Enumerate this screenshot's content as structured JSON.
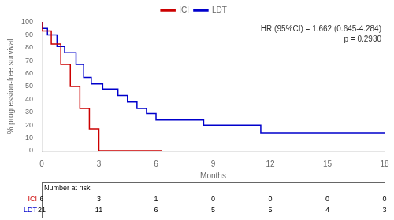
{
  "chart_data": {
    "type": "step",
    "xlabel": "Months",
    "ylabel": "% progression-free survival",
    "xlim": [
      0,
      18
    ],
    "ylim": [
      0,
      100
    ],
    "xticks": [
      0,
      3,
      6,
      9,
      12,
      15,
      18
    ],
    "yticks": [
      0,
      10,
      20,
      30,
      40,
      50,
      60,
      70,
      80,
      90,
      100
    ],
    "grid": false,
    "legend": "top",
    "annotations": [
      "HR (95%CI) = 1.662 (0.645-4.284)",
      "p = 0.2930"
    ],
    "series": [
      {
        "name": "ICI",
        "color": "#cc0000",
        "x": [
          0,
          0.5,
          1.0,
          1.5,
          2.0,
          2.5,
          3.0,
          6.3
        ],
        "values": [
          100,
          93,
          83,
          67,
          50,
          33,
          17,
          0
        ]
      },
      {
        "name": "LDT",
        "color": "#0000cc",
        "x": [
          0,
          0.3,
          0.8,
          1.2,
          1.8,
          2.2,
          2.6,
          3.2,
          4.0,
          4.5,
          5.0,
          5.5,
          6.0,
          8.5,
          11.5,
          14.0,
          17.5,
          18
        ],
        "values": [
          100,
          95,
          90,
          81,
          76,
          67,
          57,
          52,
          48,
          43,
          38,
          33,
          29,
          24,
          20,
          14,
          14,
          14
        ]
      }
    ],
    "risk_table": {
      "title": "Number at risk",
      "x": [
        0,
        3,
        6,
        9,
        12,
        15,
        18
      ],
      "rows": [
        {
          "name": "ICI",
          "color": "#cc0000",
          "values": [
            6,
            3,
            1,
            0,
            0,
            0,
            0
          ]
        },
        {
          "name": "LDT",
          "color": "#0000cc",
          "values": [
            21,
            11,
            6,
            5,
            5,
            4,
            3
          ]
        }
      ]
    }
  }
}
